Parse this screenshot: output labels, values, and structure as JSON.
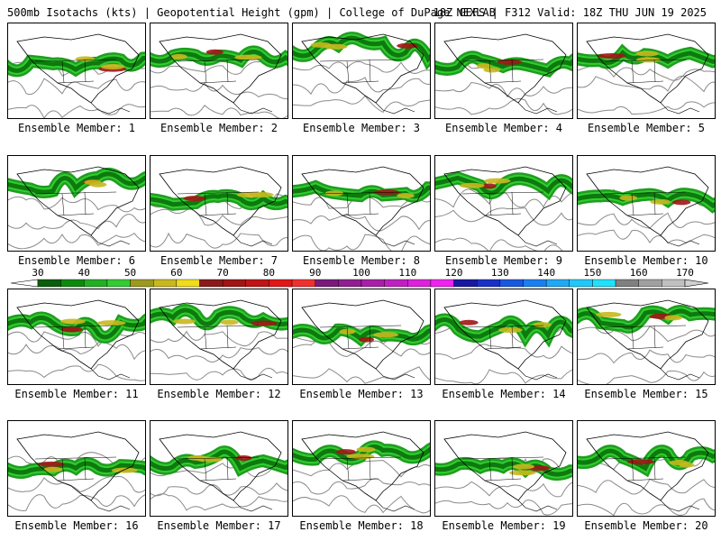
{
  "header": {
    "left": "500mb Isotachs (kts) | Geopotential Height (gpm) | College of DuPage NEXLAB",
    "right": "18Z GEFS | F312 Valid: 18Z THU JUN 19 2025"
  },
  "colorbar": {
    "ticks": [
      "30",
      "40",
      "50",
      "60",
      "70",
      "80",
      "90",
      "100",
      "110",
      "120",
      "130",
      "140",
      "150",
      "160",
      "170"
    ],
    "colors": [
      "#0b5e0b",
      "#0d8a0d",
      "#22b022",
      "#33cc33",
      "#9c9a1e",
      "#c8b81e",
      "#f0dc1a",
      "#8b1a1a",
      "#a01515",
      "#c01515",
      "#e01818",
      "#f03030",
      "#7a1a7a",
      "#901e90",
      "#a820a8",
      "#c020c0",
      "#dd22dd",
      "#f022f0",
      "#1818a0",
      "#1a30c8",
      "#1a58e0",
      "#1a80f0",
      "#20a8f5",
      "#20c8f8",
      "#22e0fa",
      "#808080",
      "#a0a0a0",
      "#c0c0c0"
    ]
  },
  "panels": [
    {
      "label": "Ensemble Member: 1"
    },
    {
      "label": "Ensemble Member: 2"
    },
    {
      "label": "Ensemble Member: 3"
    },
    {
      "label": "Ensemble Member: 4"
    },
    {
      "label": "Ensemble Member: 5"
    },
    {
      "label": "Ensemble Member: 6"
    },
    {
      "label": "Ensemble Member: 7"
    },
    {
      "label": "Ensemble Member: 8"
    },
    {
      "label": "Ensemble Member: 9"
    },
    {
      "label": "Ensemble Member: 10"
    },
    {
      "label": "Ensemble Member: 11"
    },
    {
      "label": "Ensemble Member: 12"
    },
    {
      "label": "Ensemble Member: 13"
    },
    {
      "label": "Ensemble Member: 14"
    },
    {
      "label": "Ensemble Member: 15"
    },
    {
      "label": "Ensemble Member: 16"
    },
    {
      "label": "Ensemble Member: 17"
    },
    {
      "label": "Ensemble Member: 18"
    },
    {
      "label": "Ensemble Member: 19"
    },
    {
      "label": "Ensemble Member: 20"
    }
  ]
}
